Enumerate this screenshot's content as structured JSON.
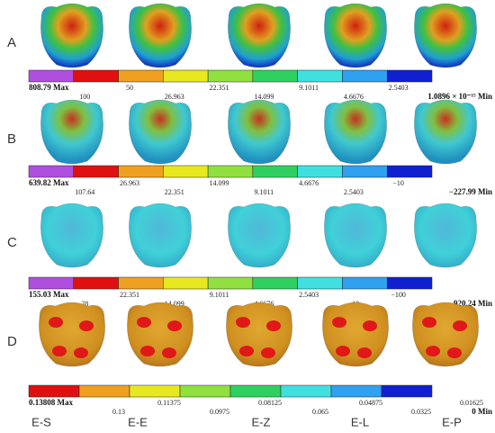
{
  "rows": [
    {
      "label": "A",
      "max": "808.79 Max",
      "min": "1.0896 × 10⁻¹⁵ Min",
      "ticks": [
        "100",
        "50",
        "26.963",
        "22.351",
        "14.099",
        "9.1011",
        "4.6676",
        "2.5403"
      ]
    },
    {
      "label": "B",
      "max": "639.82 Max",
      "min": "−227.99 Min",
      "ticks": [
        "107.64",
        "26.963",
        "22.351",
        "14.099",
        "9.1011",
        "4.6676",
        "2.5403",
        "−10"
      ]
    },
    {
      "label": "C",
      "max": "155.03 Max",
      "min": "−920.24 Min",
      "ticks": [
        "28",
        "22.351",
        "14.099",
        "9.1011",
        "4.6676",
        "2.5403",
        "−10",
        "−100"
      ]
    },
    {
      "label": "D",
      "max": "0.13808 Max",
      "min": "0 Min",
      "ticks": [
        "0.13",
        "0.11375",
        "0.0975",
        "0.08125",
        "0.065",
        "0.04875",
        "0.0325",
        "0.01625"
      ]
    }
  ],
  "columns": [
    "E-S",
    "E-E",
    "E-Z",
    "E-L",
    "E-P"
  ]
}
